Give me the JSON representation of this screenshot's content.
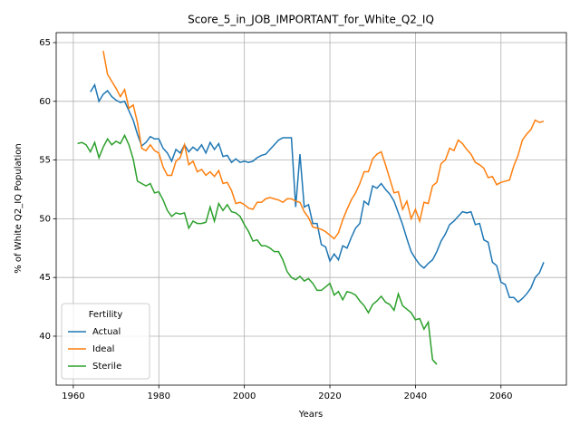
{
  "chart_data": {
    "type": "line",
    "title": "Score_5_in_JOB_IMPORTANT_for_White_Q2_IQ",
    "xlabel": "Years",
    "ylabel": "% of White Q2_IQ Population",
    "x": [
      1961,
      1962,
      1963,
      1964,
      1965,
      1966,
      1967,
      1968,
      1969,
      1970,
      1971,
      1972,
      1973,
      1974,
      1975,
      1976,
      1977,
      1978,
      1979,
      1980,
      1981,
      1982,
      1983,
      1984,
      1985,
      1986,
      1987,
      1988,
      1989,
      1990,
      1991,
      1992,
      1993,
      1994,
      1995,
      1996,
      1997,
      1998,
      1999,
      2000,
      2001,
      2002,
      2003,
      2004,
      2005,
      2006,
      2007,
      2008,
      2009,
      2010,
      2011,
      2012,
      2013,
      2014,
      2015,
      2016,
      2017,
      2018,
      2019,
      2020,
      2021,
      2022,
      2023,
      2024,
      2025,
      2026,
      2027,
      2028,
      2029,
      2030,
      2031,
      2032,
      2033,
      2034,
      2035,
      2036,
      2037,
      2038,
      2039,
      2040,
      2041,
      2042,
      2043,
      2044,
      2045,
      2046,
      2047,
      2048,
      2049,
      2050,
      2051,
      2052,
      2053,
      2054,
      2055,
      2056,
      2057,
      2058,
      2059,
      2060,
      2061,
      2062,
      2063,
      2064,
      2065,
      2066,
      2067,
      2068,
      2069,
      2070
    ],
    "series": [
      {
        "name": "Actual",
        "color": "#1f77b4",
        "values": [
          null,
          null,
          null,
          60.8,
          61.4,
          60.0,
          60.6,
          60.9,
          60.4,
          60.1,
          59.9,
          60.0,
          59.2,
          58.4,
          57.2,
          56.2,
          56.5,
          57.0,
          56.8,
          56.8,
          56.0,
          55.6,
          54.9,
          55.9,
          55.6,
          56.3,
          55.7,
          56.1,
          55.8,
          56.3,
          55.6,
          56.5,
          55.9,
          56.4,
          55.3,
          55.4,
          54.8,
          55.1,
          54.8,
          54.9,
          54.8,
          54.9,
          55.2,
          55.4,
          55.5,
          55.9,
          56.3,
          56.7,
          56.9,
          56.9,
          56.9,
          51.0,
          55.5,
          51.0,
          51.2,
          49.6,
          49.6,
          47.8,
          47.6,
          46.4,
          47.0,
          46.5,
          47.7,
          47.5,
          48.4,
          49.2,
          49.6,
          51.5,
          51.2,
          52.8,
          52.6,
          53.0,
          52.5,
          52.1,
          51.5,
          50.5,
          49.5,
          48.3,
          47.2,
          46.6,
          46.1,
          45.8,
          46.2,
          46.5,
          47.2,
          48.1,
          48.7,
          49.5,
          49.8,
          50.2,
          50.6,
          50.5,
          50.6,
          49.5,
          49.6,
          48.2,
          48.0,
          46.3,
          46.0,
          44.6,
          44.4,
          43.3,
          43.3,
          42.9,
          43.2,
          43.6,
          44.1,
          45.0,
          45.4,
          46.3
        ]
      },
      {
        "name": "Ideal",
        "color": "#ff7f0e",
        "values": [
          null,
          null,
          null,
          null,
          null,
          null,
          64.3,
          62.3,
          61.7,
          61.1,
          60.4,
          61.0,
          59.4,
          59.7,
          58.2,
          56.0,
          55.8,
          56.3,
          55.8,
          55.6,
          54.4,
          53.7,
          53.7,
          54.9,
          55.2,
          56.3,
          54.6,
          54.9,
          54.0,
          54.2,
          53.7,
          54.0,
          53.6,
          54.1,
          53.0,
          53.1,
          52.4,
          51.3,
          51.4,
          51.2,
          50.9,
          50.8,
          51.4,
          51.4,
          51.7,
          51.8,
          51.7,
          51.6,
          51.4,
          51.7,
          51.7,
          51.5,
          51.4,
          50.6,
          50.1,
          49.3,
          49.2,
          49.1,
          48.9,
          48.6,
          48.3,
          48.8,
          49.9,
          50.8,
          51.6,
          52.2,
          53.0,
          54.0,
          54.0,
          55.1,
          55.5,
          55.7,
          54.6,
          53.4,
          52.2,
          52.3,
          50.8,
          51.5,
          50.0,
          50.8,
          49.8,
          51.4,
          51.3,
          52.8,
          53.1,
          54.7,
          55.0,
          56.0,
          55.8,
          56.7,
          56.4,
          55.9,
          55.5,
          54.8,
          54.6,
          54.3,
          53.5,
          53.6,
          52.9,
          53.1,
          53.2,
          53.3,
          54.5,
          55.4,
          56.7,
          57.2,
          57.6,
          58.4,
          58.2,
          58.3
        ]
      },
      {
        "name": "Sterile",
        "color": "#2ca02c",
        "values": [
          56.4,
          56.5,
          56.3,
          55.7,
          56.5,
          55.2,
          56.1,
          56.8,
          56.3,
          56.6,
          56.4,
          57.1,
          56.3,
          55.1,
          53.2,
          53.0,
          52.8,
          53.0,
          52.2,
          52.3,
          51.6,
          50.7,
          50.2,
          50.5,
          50.4,
          50.5,
          49.2,
          49.8,
          49.6,
          49.6,
          49.7,
          51.0,
          49.8,
          51.3,
          50.7,
          51.2,
          50.6,
          50.5,
          50.2,
          49.5,
          48.9,
          48.1,
          48.2,
          47.7,
          47.7,
          47.5,
          47.2,
          47.2,
          46.5,
          45.5,
          45.0,
          44.8,
          45.1,
          44.7,
          44.9,
          44.5,
          43.9,
          43.9,
          44.2,
          44.5,
          43.5,
          43.8,
          43.1,
          43.8,
          43.7,
          43.5,
          43.0,
          42.6,
          42.0,
          42.7,
          43.0,
          43.4,
          42.9,
          42.7,
          42.2,
          43.6,
          42.6,
          42.3,
          42.0,
          41.4,
          41.5,
          40.6,
          41.2,
          38.0,
          37.6,
          null,
          null,
          null,
          null,
          null,
          null,
          null,
          null,
          null,
          null,
          null,
          null,
          null,
          null,
          null,
          null,
          null,
          null,
          null,
          null,
          null,
          null,
          null,
          null,
          null
        ]
      }
    ],
    "xlim": [
      1956,
      2075.3
    ],
    "xticks": [
      1960,
      1980,
      2000,
      2020,
      2040,
      2060
    ],
    "ylim": [
      35.83,
      65.85
    ],
    "yticks": [
      40,
      45,
      50,
      55,
      60,
      65
    ],
    "grid": true,
    "legend_title": "Fertility",
    "legend_loc": "lower left"
  }
}
